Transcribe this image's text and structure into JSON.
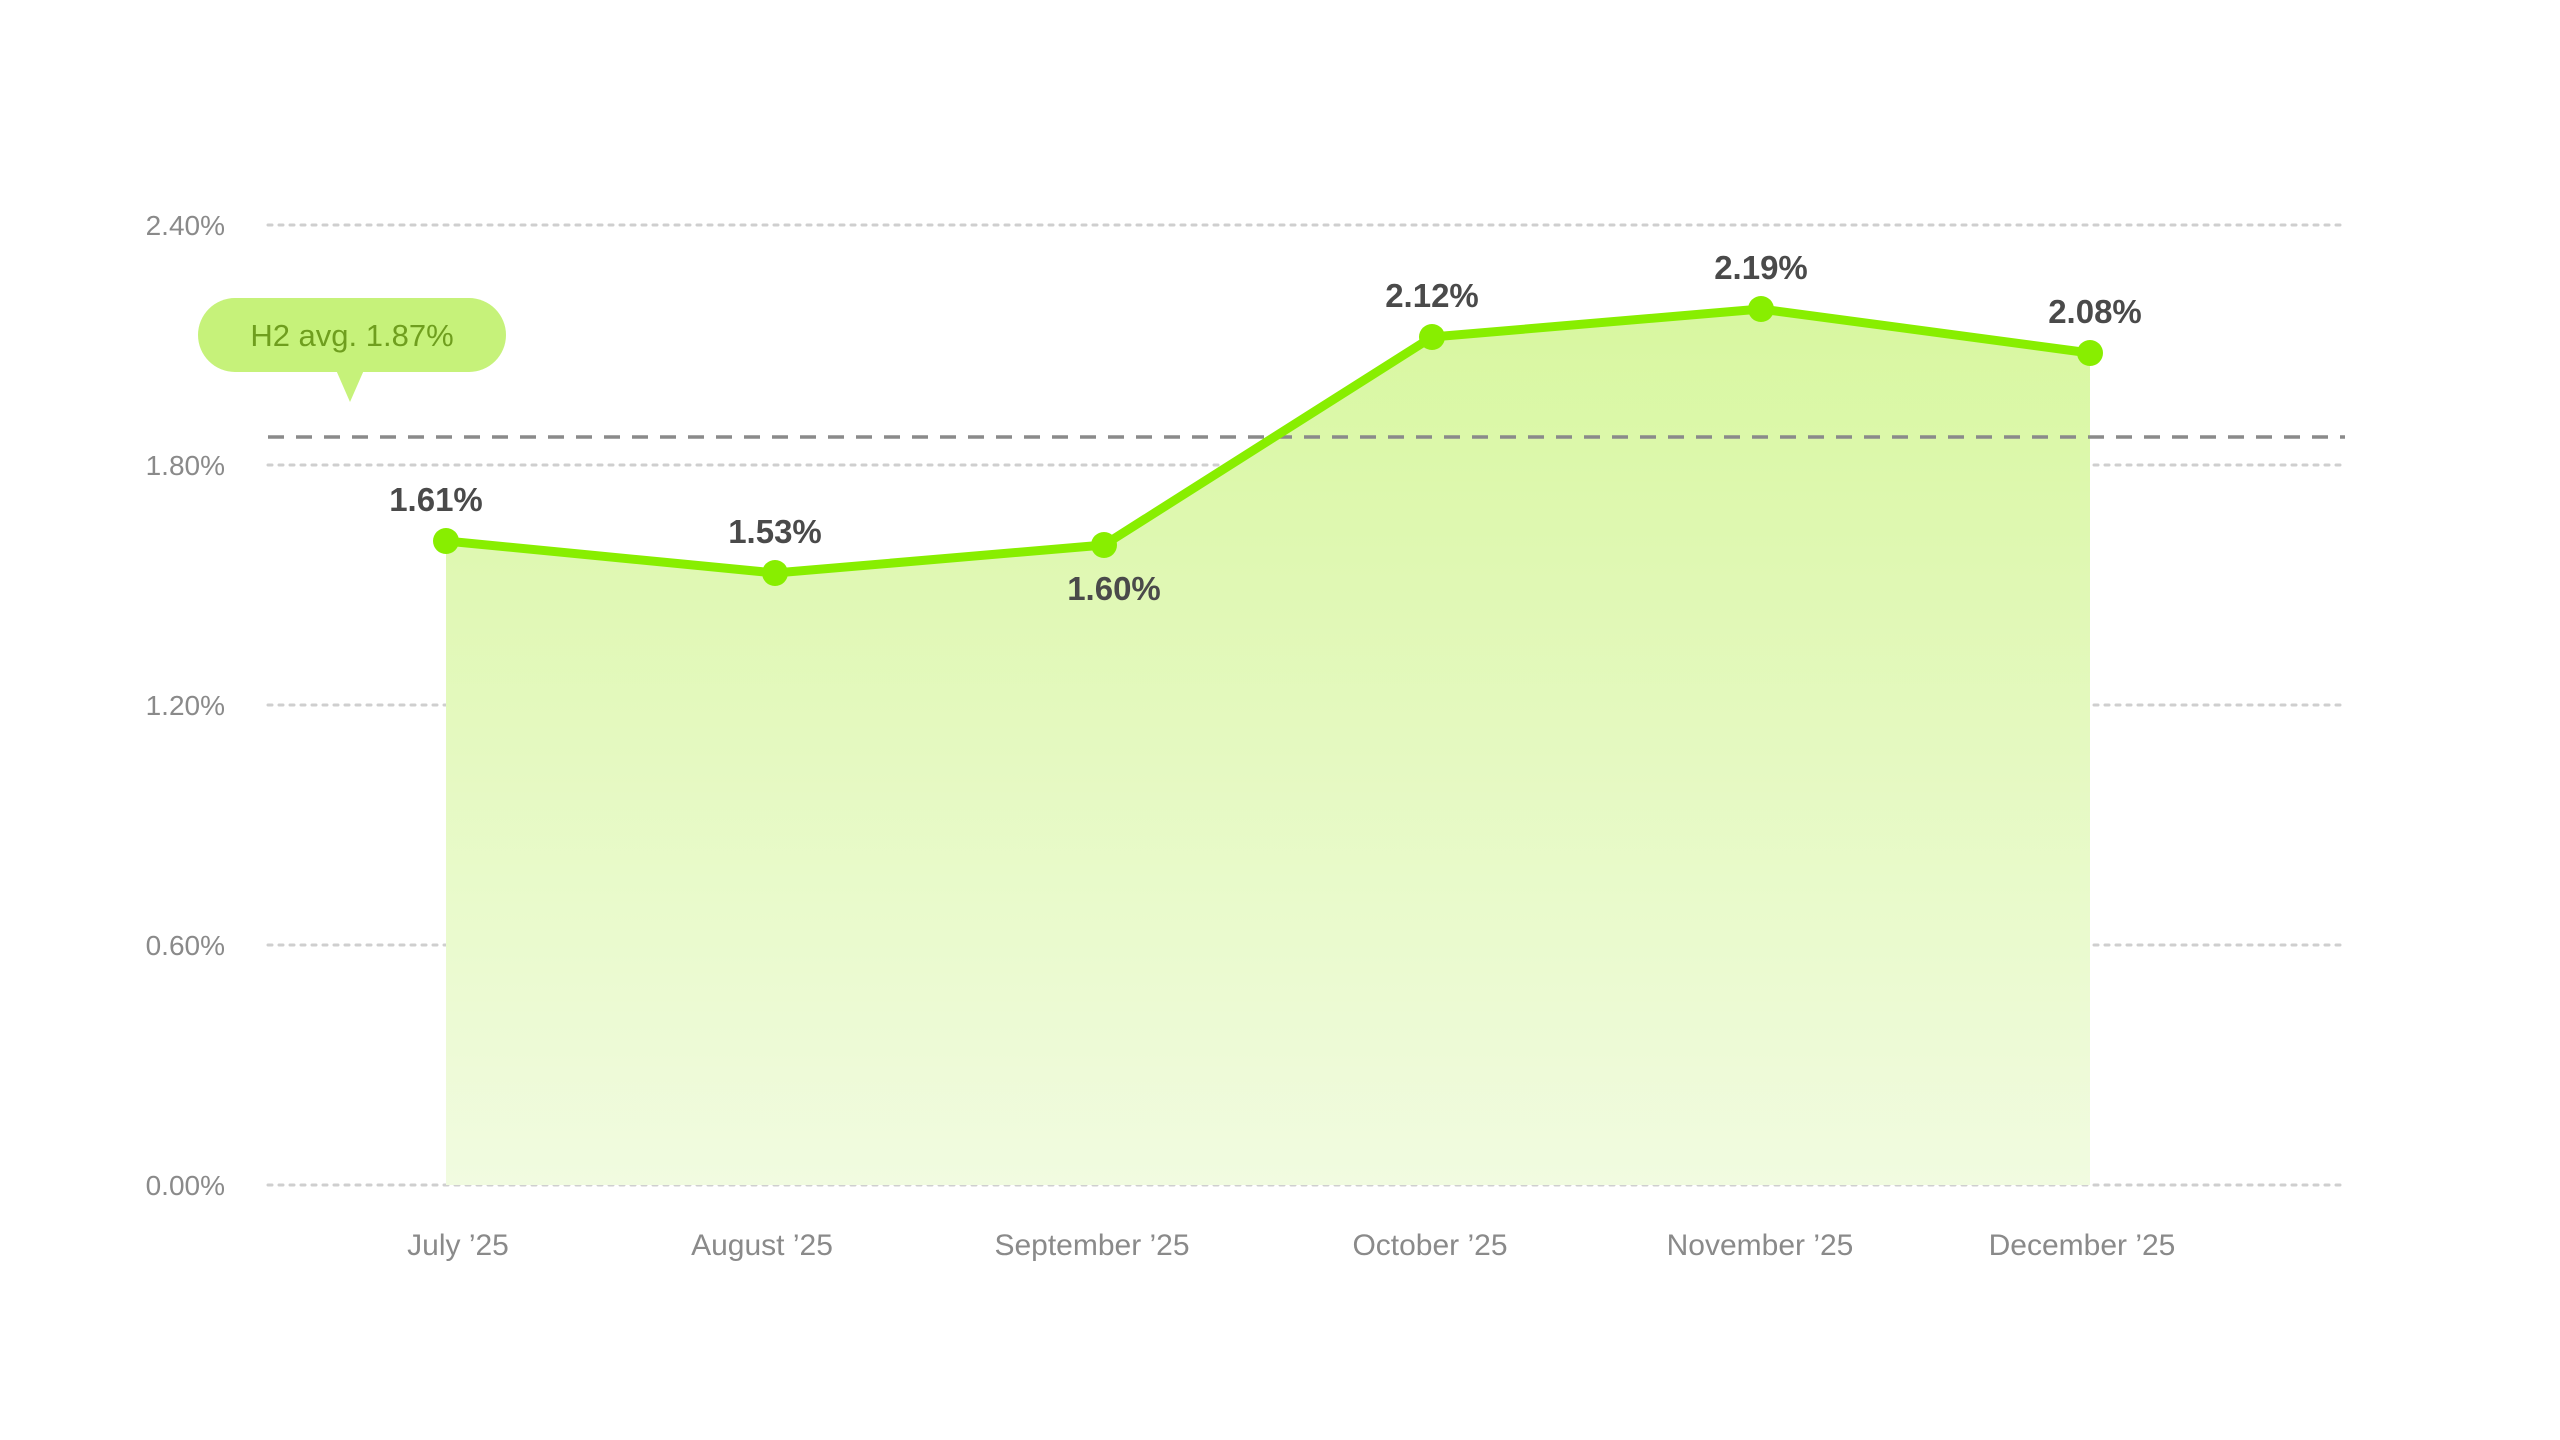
{
  "chart_data": {
    "type": "area",
    "categories": [
      "July ’25",
      "August ’25",
      "September ’25",
      "October ’25",
      "November ’25",
      "December ’25"
    ],
    "values": [
      1.61,
      1.53,
      1.6,
      2.12,
      2.19,
      2.08
    ],
    "value_labels": [
      "1.61%",
      "1.53%",
      "1.60%",
      "2.12%",
      "2.19%",
      "2.08%"
    ],
    "label_positions": [
      "above",
      "above",
      "below",
      "above",
      "above",
      "above"
    ],
    "ylim": [
      0,
      2.4
    ],
    "yticks": [
      0,
      0.6,
      1.2,
      1.8,
      2.4
    ],
    "ytick_labels": [
      "0.00%",
      "0.60%",
      "1.20%",
      "1.80%",
      "2.40%"
    ],
    "grid": true,
    "reference_line": {
      "value": 1.87,
      "label": "H2 avg. 1.87%",
      "style": "dashed"
    },
    "colors": {
      "line": "#88ee00",
      "area_top": "#d8f7a0",
      "area_bottom": "#f1fbe0",
      "grid": "#cfcfcf",
      "reference_line": "#8a8a8a",
      "badge_bg": "#c6f27a",
      "badge_text": "#6f9e1e",
      "tick_text": "#8a8a8a",
      "value_text": "#4a4a4a"
    }
  }
}
